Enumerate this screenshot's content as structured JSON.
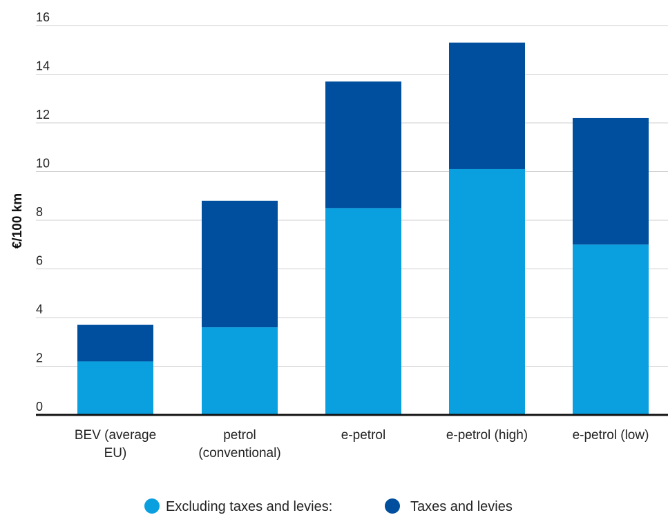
{
  "chart_data": {
    "type": "bar",
    "stacked": true,
    "ylabel": "€/100 km",
    "ylim": [
      0,
      16
    ],
    "yticks": [
      0,
      2,
      4,
      6,
      8,
      10,
      12,
      14,
      16
    ],
    "grid": true,
    "legend_position": "bottom",
    "categories": [
      [
        "BEV (average",
        "EU)"
      ],
      [
        "petrol",
        "(conventional)"
      ],
      [
        "e-petrol"
      ],
      [
        "e-petrol (high)"
      ],
      [
        "e-petrol (low)"
      ]
    ],
    "series": [
      {
        "name": "Excluding taxes and levies:",
        "color": "#0aa0e0",
        "values": [
          2.2,
          3.6,
          8.5,
          10.1,
          7.0
        ]
      },
      {
        "name": "Taxes and levies",
        "color": "#004f9e",
        "values": [
          1.5,
          5.2,
          5.2,
          5.2,
          5.2
        ]
      }
    ]
  }
}
